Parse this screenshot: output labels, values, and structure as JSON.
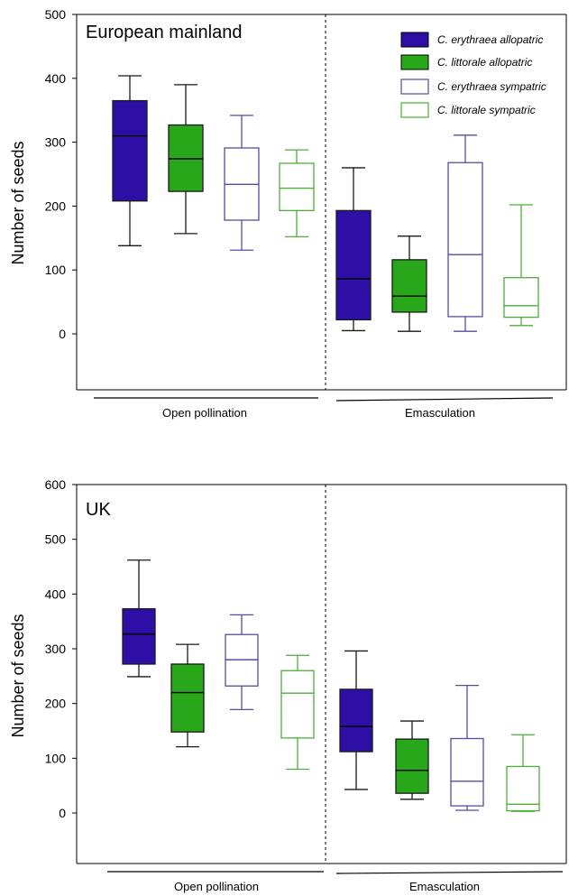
{
  "colors": {
    "erythraea": "#2e0fa5",
    "littorale": "#27a719",
    "erythraea_outline": "#5a4aa6",
    "littorale_outline": "#4caf3a"
  },
  "legend": [
    {
      "label": "C. erythraea allopatric",
      "series": "erythraea_allo"
    },
    {
      "label": "C. littorale allopatric",
      "series": "littorale_allo"
    },
    {
      "label": "C. erythraea sympatric",
      "series": "erythraea_sym"
    },
    {
      "label": "C. littorale sympatric",
      "series": "littorale_sym"
    }
  ],
  "chart_data": [
    {
      "type": "box",
      "title": "European mainland",
      "ylabel": "Number of seeds",
      "ylim": [
        -90,
        500
      ],
      "yticks": [
        0,
        100,
        200,
        300,
        400,
        500
      ],
      "groups": [
        "Open pollination",
        "Emasculation"
      ],
      "series": [
        {
          "name": "C. erythraea allopatric",
          "group": "Open pollination",
          "min": 138,
          "q1": 208,
          "median": 310,
          "q3": 365,
          "max": 404
        },
        {
          "name": "C. littorale allopatric",
          "group": "Open pollination",
          "min": 157,
          "q1": 223,
          "median": 274,
          "q3": 327,
          "max": 390
        },
        {
          "name": "C. erythraea sympatric",
          "group": "Open pollination",
          "min": 131,
          "q1": 178,
          "median": 234,
          "q3": 291,
          "max": 342
        },
        {
          "name": "C. littorale sympatric",
          "group": "Open pollination",
          "min": 152,
          "q1": 193,
          "median": 228,
          "q3": 267,
          "max": 288
        },
        {
          "name": "C. erythraea allopatric",
          "group": "Emasculation",
          "min": 5,
          "q1": 22,
          "median": 86,
          "q3": 193,
          "max": 260
        },
        {
          "name": "C. littorale allopatric",
          "group": "Emasculation",
          "min": 4,
          "q1": 34,
          "median": 59,
          "q3": 116,
          "max": 153
        },
        {
          "name": "C. erythraea sympatric",
          "group": "Emasculation",
          "min": 4,
          "q1": 27,
          "median": 124,
          "q3": 268,
          "max": 311
        },
        {
          "name": "C. littorale sympatric",
          "group": "Emasculation",
          "min": 13,
          "q1": 26,
          "median": 44,
          "q3": 88,
          "max": 202
        }
      ]
    },
    {
      "type": "box",
      "title": "UK",
      "ylabel": "Number of seeds",
      "ylim": [
        -95,
        600
      ],
      "yticks": [
        0,
        100,
        200,
        300,
        400,
        500,
        600
      ],
      "groups": [
        "Open pollination",
        "Emasculation"
      ],
      "series": [
        {
          "name": "C. erythraea allopatric",
          "group": "Open pollination",
          "min": 249,
          "q1": 272,
          "median": 327,
          "q3": 373,
          "max": 462
        },
        {
          "name": "C. littorale allopatric",
          "group": "Open pollination",
          "min": 121,
          "q1": 148,
          "median": 220,
          "q3": 272,
          "max": 308
        },
        {
          "name": "C. erythraea sympatric",
          "group": "Open pollination",
          "min": 189,
          "q1": 232,
          "median": 280,
          "q3": 326,
          "max": 362
        },
        {
          "name": "C. littorale sympatric",
          "group": "Open pollination",
          "min": 80,
          "q1": 137,
          "median": 219,
          "q3": 260,
          "max": 288
        },
        {
          "name": "C. erythraea allopatric",
          "group": "Emasculation",
          "min": 43,
          "q1": 112,
          "median": 158,
          "q3": 226,
          "max": 296
        },
        {
          "name": "C. littorale allopatric",
          "group": "Emasculation",
          "min": 25,
          "q1": 36,
          "median": 78,
          "q3": 135,
          "max": 168
        },
        {
          "name": "C. erythraea sympatric",
          "group": "Emasculation",
          "min": 5,
          "q1": 13,
          "median": 58,
          "q3": 136,
          "max": 233
        },
        {
          "name": "C. littorale sympatric",
          "group": "Emasculation",
          "min": 3,
          "q1": 4,
          "median": 16,
          "q3": 85,
          "max": 143
        }
      ]
    }
  ]
}
